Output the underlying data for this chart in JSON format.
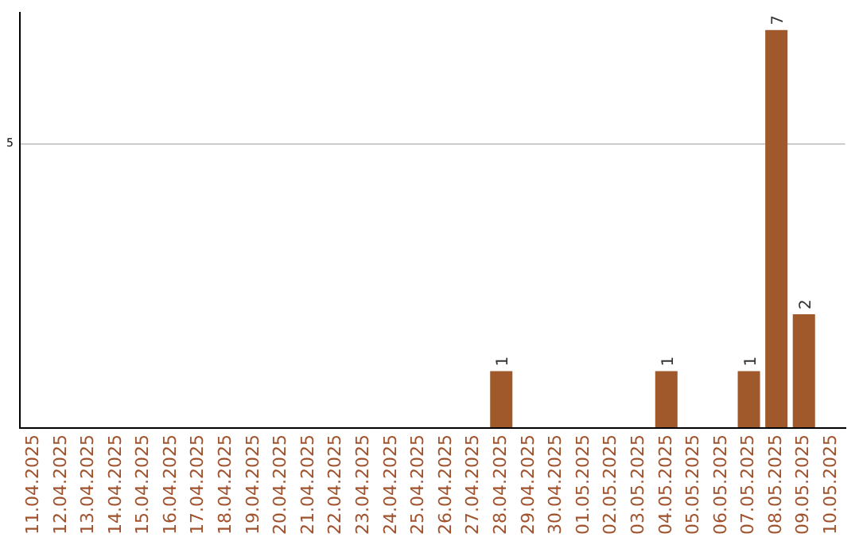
{
  "chart_data": {
    "type": "bar",
    "categories": [
      "11.04.2025",
      "12.04.2025",
      "13.04.2025",
      "14.04.2025",
      "15.04.2025",
      "16.04.2025",
      "17.04.2025",
      "18.04.2025",
      "19.04.2025",
      "20.04.2025",
      "21.04.2025",
      "22.04.2025",
      "23.04.2025",
      "24.04.2025",
      "25.04.2025",
      "26.04.2025",
      "27.04.2025",
      "28.04.2025",
      "29.04.2025",
      "30.04.2025",
      "01.05.2025",
      "02.05.2025",
      "03.05.2025",
      "04.05.2025",
      "05.05.2025",
      "06.05.2025",
      "07.05.2025",
      "08.05.2025",
      "09.05.2025",
      "10.05.2025"
    ],
    "values": [
      null,
      null,
      null,
      null,
      null,
      null,
      null,
      null,
      null,
      null,
      null,
      null,
      null,
      null,
      null,
      null,
      null,
      1,
      null,
      null,
      null,
      null,
      null,
      1,
      null,
      null,
      1,
      7,
      2,
      null
    ],
    "data_labels": true,
    "color": "#a0592b",
    "ylim": [
      0,
      7.3
    ],
    "yticks": [
      {
        "value": 0,
        "label": null
      },
      5
    ],
    "grid": "y",
    "legend": false
  }
}
